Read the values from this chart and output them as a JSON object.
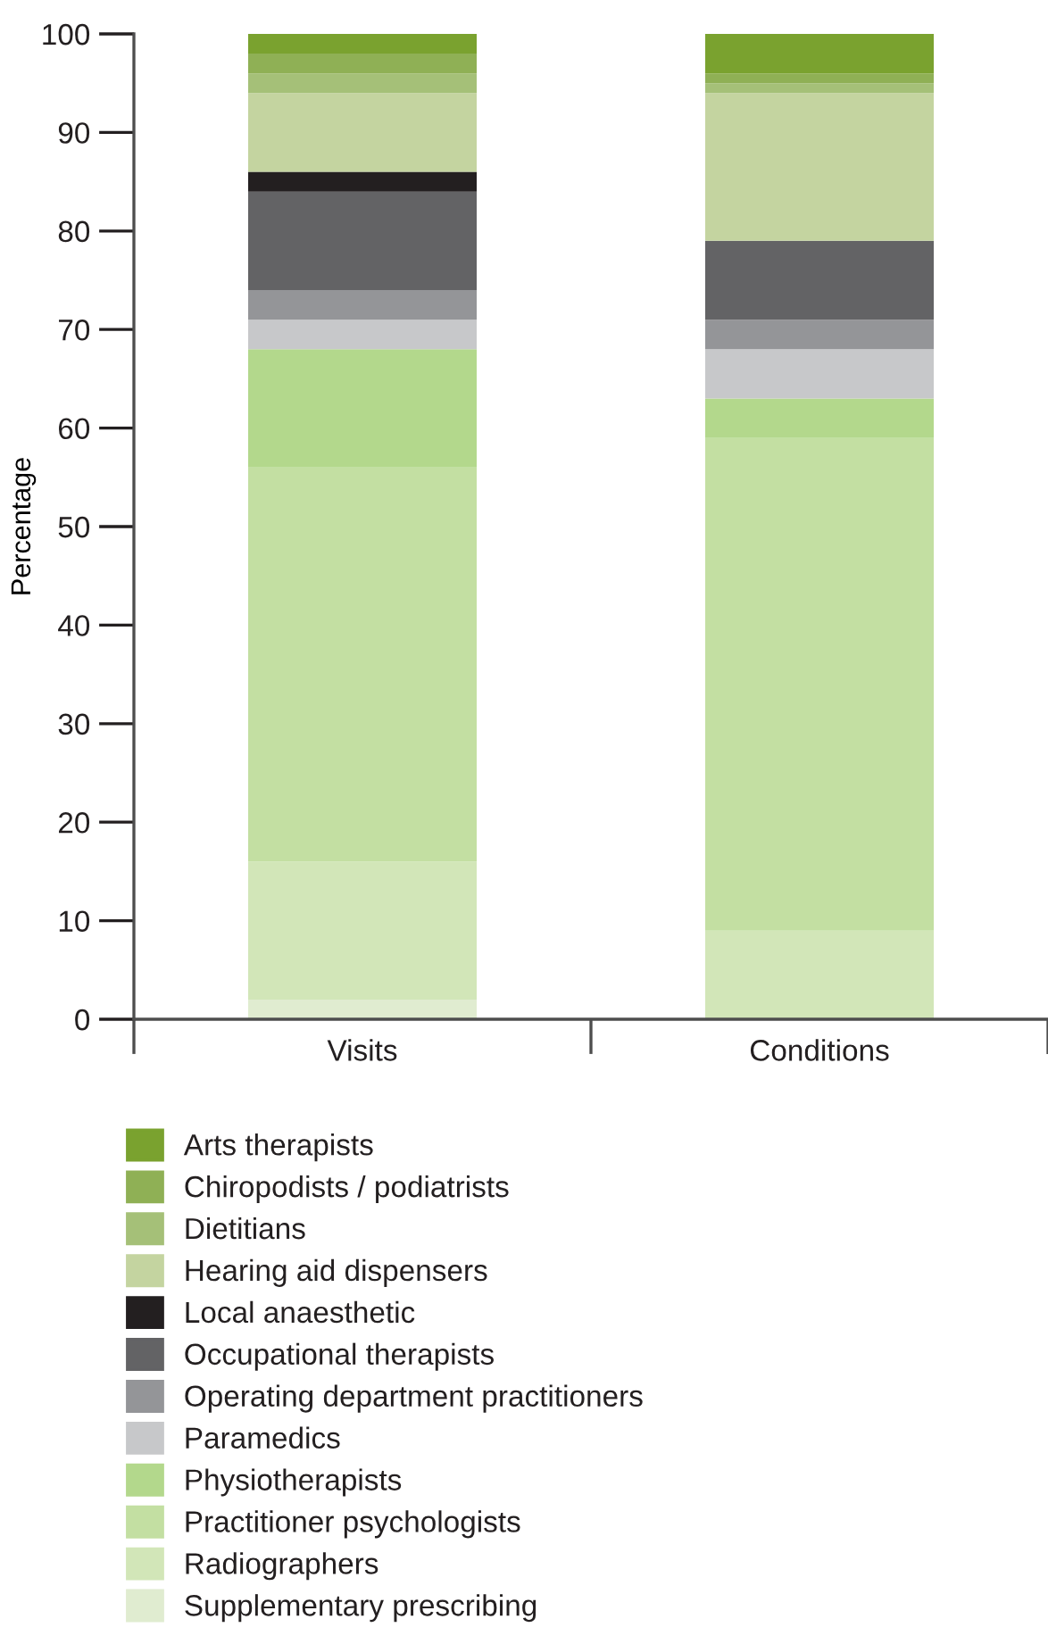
{
  "chart_data": {
    "type": "bar",
    "stacked": true,
    "ylabel": "Percentage",
    "categories": [
      "Visits",
      "Conditions"
    ],
    "ylim": [
      0,
      100
    ],
    "yticks": [
      0,
      10,
      20,
      30,
      40,
      50,
      60,
      70,
      80,
      90,
      100
    ],
    "grid": false,
    "legend": "bottom",
    "series": [
      {
        "name": "Supplementary prescribing",
        "color": "#e0ecd0",
        "values": [
          2,
          0
        ]
      },
      {
        "name": "Radiographers",
        "color": "#d2e6b8",
        "values": [
          14,
          9
        ]
      },
      {
        "name": "Practitioner psychologists",
        "color": "#c3dfa2",
        "values": [
          40,
          50
        ]
      },
      {
        "name": "Physiotherapists",
        "color": "#b3d88c",
        "values": [
          12,
          4
        ]
      },
      {
        "name": "Paramedics",
        "color": "#c7c8ca",
        "values": [
          3,
          5
        ]
      },
      {
        "name": "Operating department practitioners",
        "color": "#949598",
        "values": [
          3,
          3
        ]
      },
      {
        "name": "Occupational therapists",
        "color": "#636365",
        "values": [
          10,
          8
        ]
      },
      {
        "name": "Local anaesthetic",
        "color": "#231f20",
        "values": [
          2,
          0
        ]
      },
      {
        "name": "Hearing aid dispensers",
        "color": "#c4d4a0",
        "values": [
          8,
          15
        ]
      },
      {
        "name": "Dietitians",
        "color": "#a5c078",
        "values": [
          2,
          1
        ]
      },
      {
        "name": "Chiropodists / podiatrists",
        "color": "#8fb055",
        "values": [
          2,
          1
        ]
      },
      {
        "name": "Arts therapists",
        "color": "#7aa22f",
        "values": [
          2,
          4
        ]
      }
    ]
  }
}
